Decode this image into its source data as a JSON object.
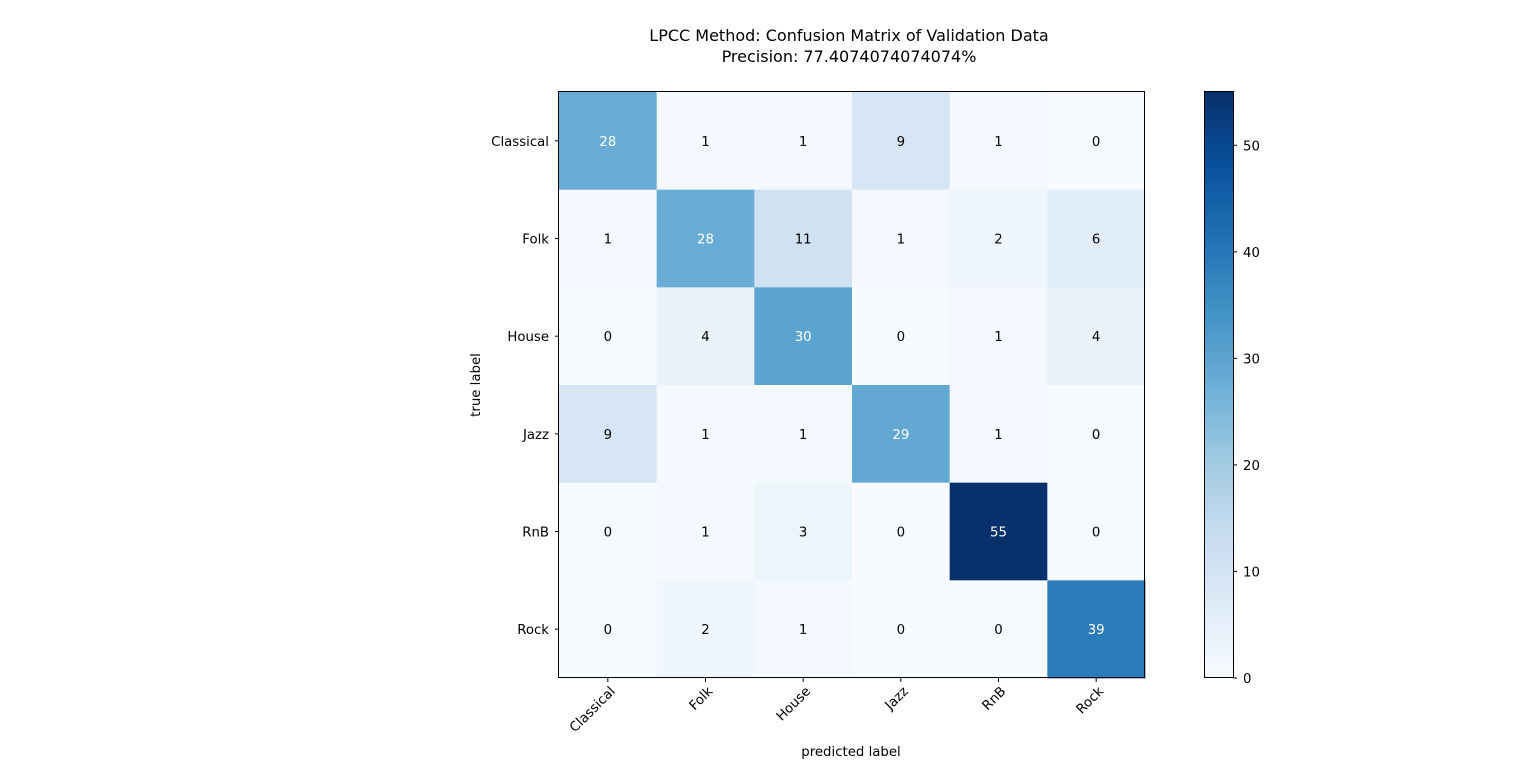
{
  "chart_data": {
    "type": "heatmap",
    "title": "LPCC Method: Confusion Matrix of Validation Data",
    "subtitle": "Precision: 77.4074074074074%",
    "xlabel": "predicted label",
    "ylabel": "true label",
    "x_categories": [
      "Classical",
      "Folk",
      "House",
      "Jazz",
      "RnB",
      "Rock"
    ],
    "y_categories": [
      "Classical",
      "Folk",
      "House",
      "Jazz",
      "RnB",
      "Rock"
    ],
    "values": [
      [
        28,
        1,
        1,
        9,
        1,
        0
      ],
      [
        1,
        28,
        11,
        1,
        2,
        6
      ],
      [
        0,
        4,
        30,
        0,
        1,
        4
      ],
      [
        9,
        1,
        1,
        29,
        1,
        0
      ],
      [
        0,
        1,
        3,
        0,
        55,
        0
      ],
      [
        0,
        2,
        1,
        0,
        0,
        39
      ]
    ],
    "colormap": "Blues",
    "colorbar": {
      "range": [
        0,
        55
      ],
      "ticks": [
        0,
        10,
        20,
        30,
        40,
        50
      ],
      "tick_labels": [
        "0",
        "10",
        "20",
        "30",
        "40",
        "50"
      ]
    },
    "label_color_threshold": 27.5,
    "light_text_color": "#ffffff",
    "dark_text_color": "#000000"
  }
}
